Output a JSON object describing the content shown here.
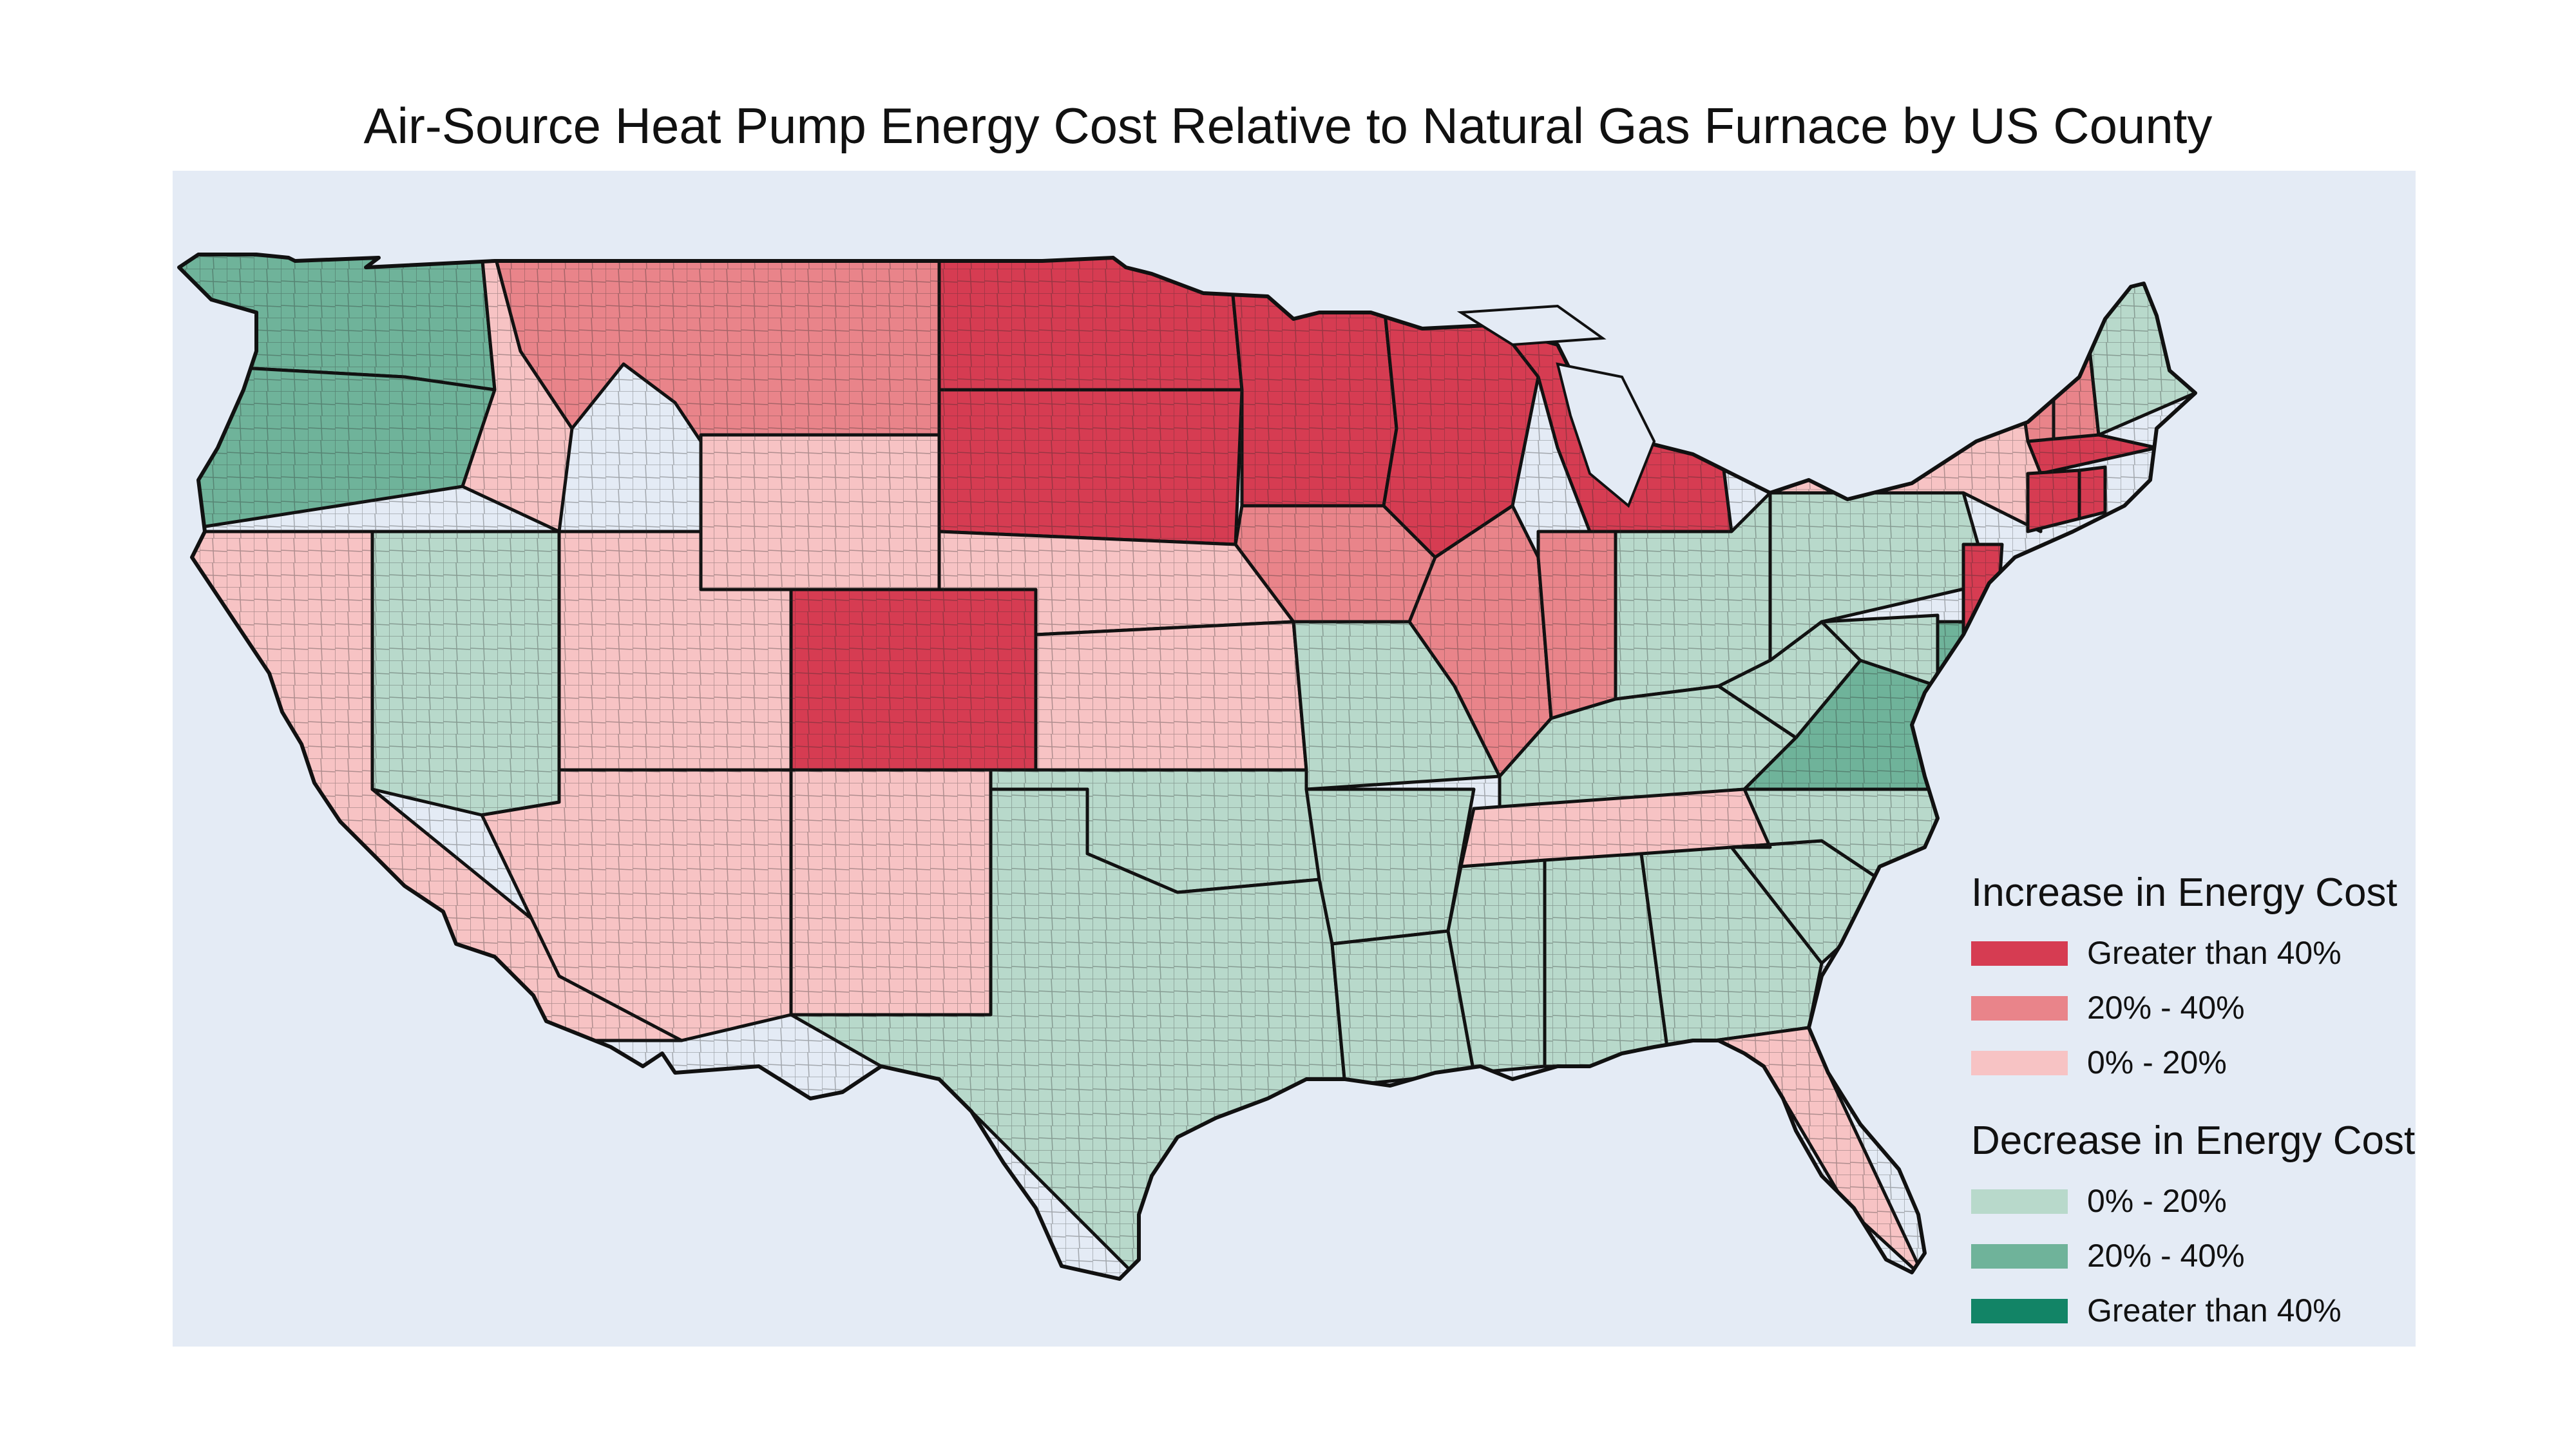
{
  "title": "Air-Source Heat Pump Energy Cost Relative to Natural Gas Furnace by US County",
  "legend": {
    "increase_heading": "Increase in Energy Cost",
    "decrease_heading": "Decrease in Energy Cost",
    "increase_items": [
      {
        "label": "Greater than 40%",
        "color": "#d63c52"
      },
      {
        "label": "20% - 40%",
        "color": "#e9848a"
      },
      {
        "label": "0% - 20%",
        "color": "#f7c3c4"
      }
    ],
    "decrease_items": [
      {
        "label": "0% - 20%",
        "color": "#b8d9cb"
      },
      {
        "label": "20% - 40%",
        "color": "#6fb39a"
      },
      {
        "label": "Greater than 40%",
        "color": "#128466"
      }
    ]
  },
  "colors": {
    "panel": "#e4ebf5",
    "state_border": "#111111"
  },
  "regions": {
    "WA": "dec_20_40",
    "OR": "dec_20_40",
    "CA": "inc_0_20",
    "NV": "dec_0_20",
    "ID": "inc_0_20",
    "MT": "inc_20_40",
    "WY": "inc_0_20",
    "UT": "inc_0_20",
    "AZ": "inc_0_20",
    "CO": "inc_40",
    "NM": "inc_0_20",
    "ND": "inc_40",
    "SD": "inc_40",
    "NE": "inc_0_20",
    "KS": "inc_0_20",
    "OK": "dec_0_20",
    "TX": "dec_0_20",
    "MN": "inc_40",
    "IA": "inc_20_40",
    "MO": "dec_0_20",
    "AR": "dec_0_20",
    "LA": "dec_0_20",
    "WI": "inc_40",
    "IL": "inc_20_40",
    "MI": "inc_40",
    "IN": "inc_20_40",
    "OH": "dec_0_20",
    "KY": "dec_0_20",
    "TN": "inc_0_20",
    "MS": "dec_0_20",
    "AL": "dec_0_20",
    "GA": "dec_0_20",
    "FL": "inc_0_20",
    "SC": "dec_0_20",
    "NC": "dec_0_20",
    "VA": "dec_20_40",
    "WV": "dec_0_20",
    "PA": "dec_0_20",
    "NY": "inc_0_20",
    "VT": "inc_20_40",
    "NH": "inc_20_40",
    "ME": "dec_0_20",
    "MA": "inc_40",
    "CT": "inc_40",
    "RI": "inc_40",
    "NJ": "inc_40",
    "DE": "dec_20_40",
    "MD": "dec_0_20"
  }
}
